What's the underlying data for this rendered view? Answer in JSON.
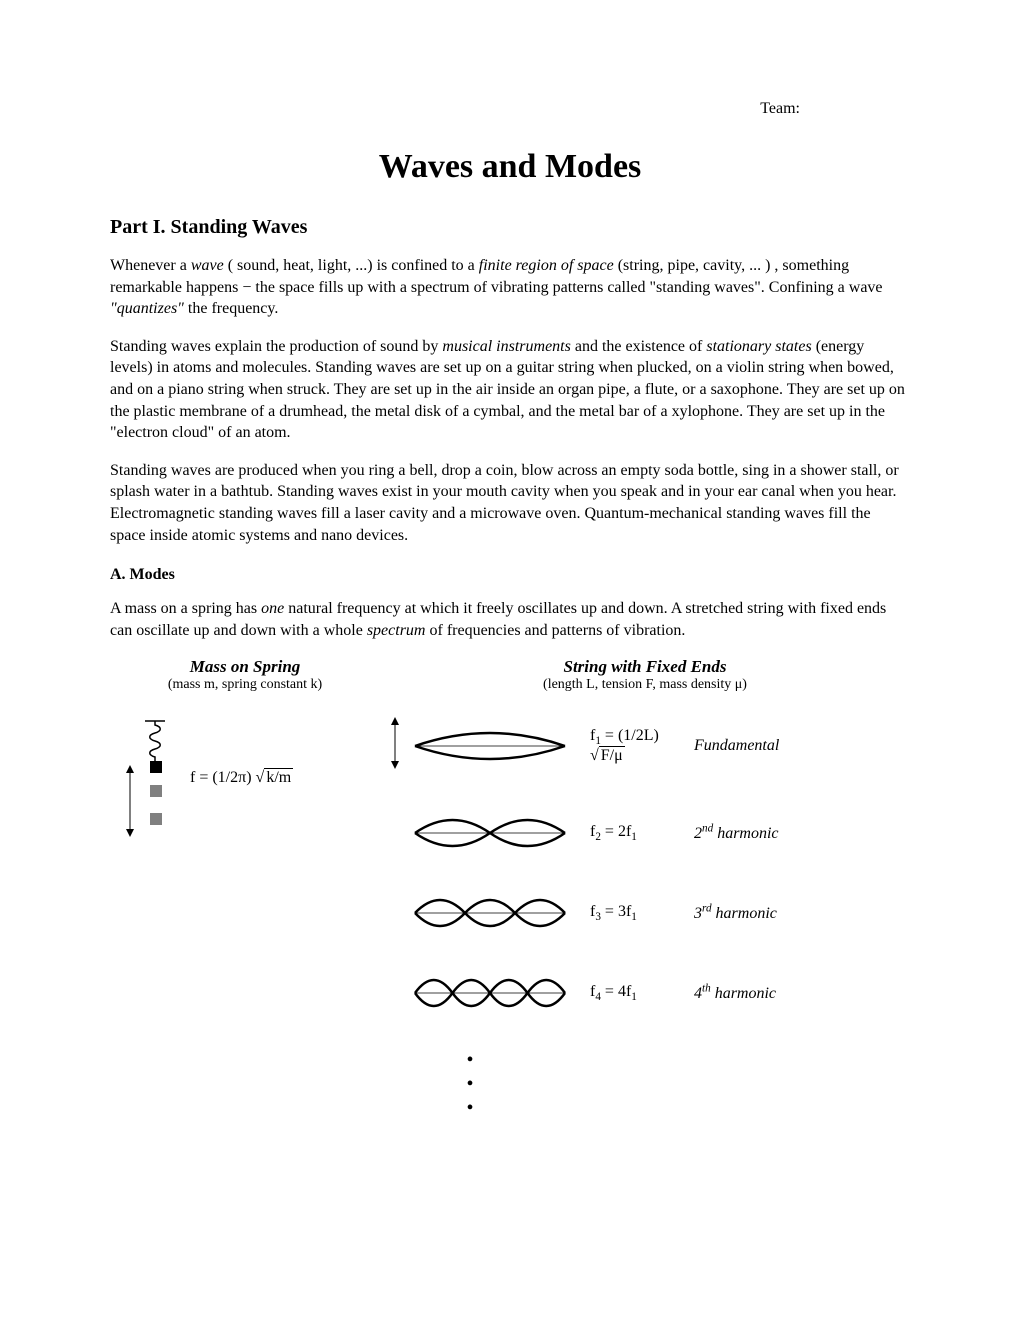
{
  "header": {
    "team_label": "Team:"
  },
  "title": "Waves and Modes",
  "part1": {
    "heading": "Part I.   Standing Waves",
    "p1_html": "Whenever a <i>wave</i> ( sound, heat, light, ...) is confined to a <i>finite region of space</i> (string, pipe, cavity, ... ) , something remarkable happens − the space fills up with a spectrum of vibrating patterns called \"standing waves\".     Confining a wave <i>\"quantizes\"</i> the frequency.",
    "p2_html": "Standing waves explain the production of sound by <i>musical instruments</i> and the existence of <i>stationary states</i> (energy levels) in atoms and molecules.  Standing waves are set up on a guitar string when plucked, on a violin string when bowed, and on a piano string when struck.  They are set up in the air inside an organ pipe, a flute, or a saxophone.  They are set up on the plastic membrane of a drumhead, the metal disk of a cymbal, and the metal bar of a xylophone.  They are set up in the \"electron cloud\" of an atom.",
    "p3": "Standing waves are produced when you ring a bell, drop a coin, blow across an empty soda bottle, sing in a shower stall, or splash water in a bathtub.  Standing waves exist in your mouth cavity when you speak and in your ear canal when you hear.  Electromagnetic standing waves fill a laser cavity and a microwave oven.  Quantum-mechanical standing waves fill the space inside atomic systems and nano devices."
  },
  "sectionA": {
    "heading": "A.   Modes",
    "p1_html": "A mass on a spring has <i>one</i> natural frequency at which it freely oscillates up and down.  A stretched string with fixed ends can oscillate up and down with a whole <i>spectrum</i> of frequencies and patterns of vibration."
  },
  "diagrams": {
    "mass_spring": {
      "title": "Mass on Spring",
      "subtitle": "(mass m, spring constant k)",
      "formula_prefix": "f = (1/2π) ",
      "formula_radical": "√",
      "formula_radicand": "k/m",
      "colors": {
        "stroke": "#000000",
        "mass_fill": "#808080",
        "top_fill": "#000000"
      }
    },
    "string": {
      "title": "String with Fixed Ends",
      "subtitle": "(length L, tension F, mass density μ)",
      "harmonics": [
        {
          "n": 1,
          "formula_prefix": "f",
          "formula_sub": "1",
          "formula_eq": " = (1/2L) ",
          "formula_radical": "√",
          "formula_radicand": "F/μ",
          "label_html": "<i>Fundamental</i>",
          "envelope_stroke_width": 2.5
        },
        {
          "n": 2,
          "formula_html": "f<sub>2</sub> = 2f<sub>1</sub>",
          "label_html": "<i>2<sup>nd</sup> harmonic</i>",
          "envelope_stroke_width": 2.5
        },
        {
          "n": 3,
          "formula_html": "f<sub>3</sub> = 3f<sub>1</sub>",
          "label_html": "<i>3<sup>rd</sup> harmonic</i>",
          "envelope_stroke_width": 2.5
        },
        {
          "n": 4,
          "formula_html": "f<sub>4</sub> = 4f<sub>1</sub>",
          "label_html": "<i>4<sup>th</sup> harmonic</i>",
          "envelope_stroke_width": 2.5
        }
      ],
      "svg": {
        "width": 160,
        "height": 50,
        "amplitude": 20,
        "stroke": "#000000",
        "centerline_width": 0.8
      }
    }
  }
}
